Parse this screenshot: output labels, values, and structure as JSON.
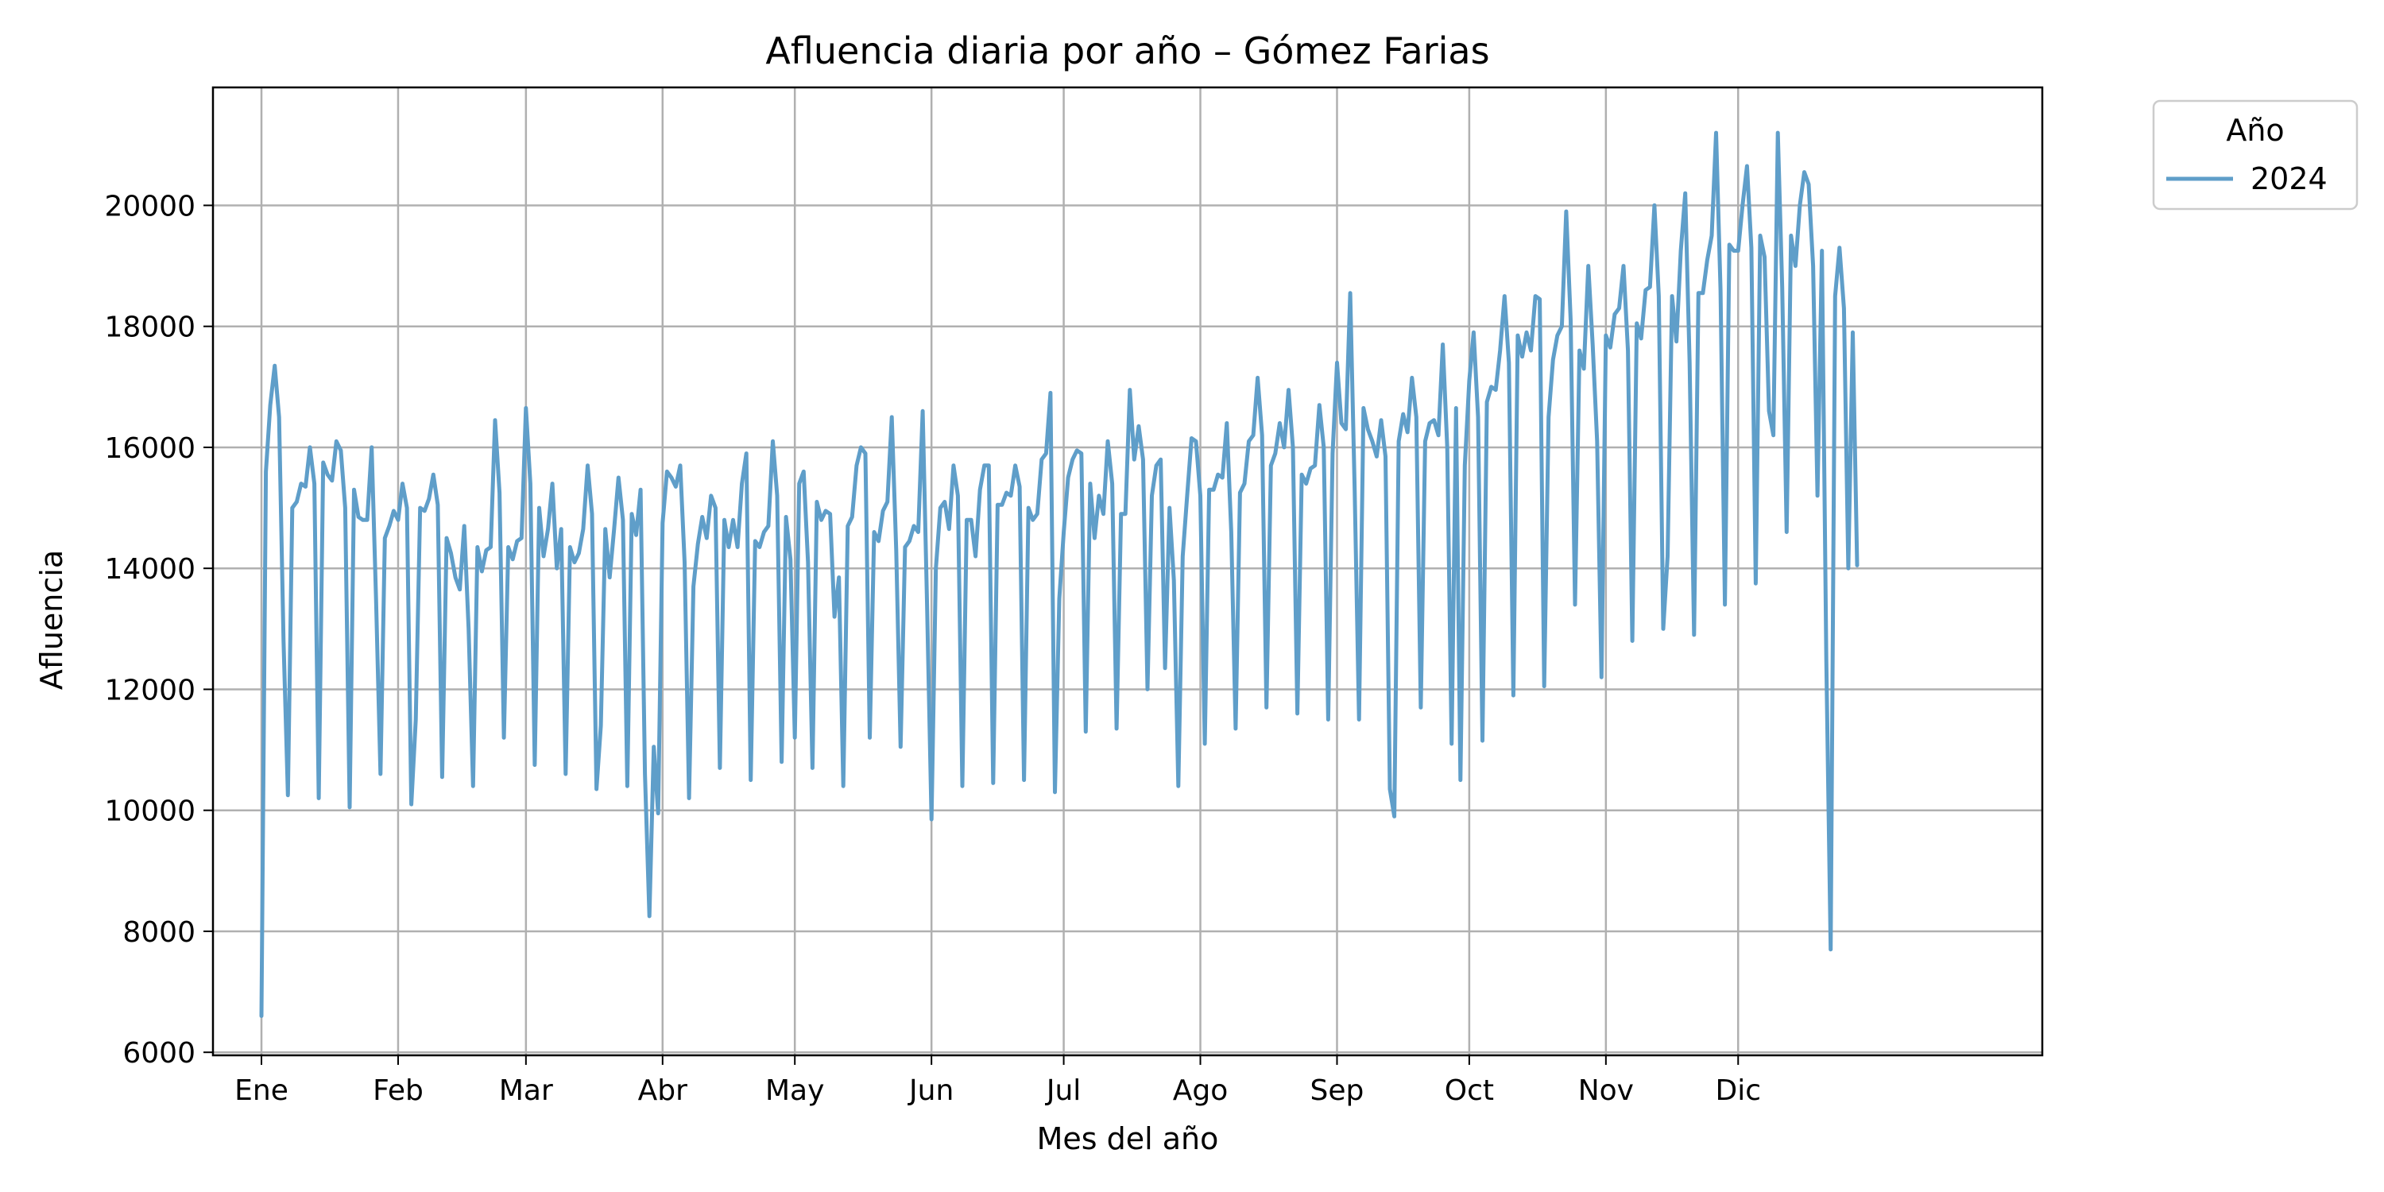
{
  "chart_data": {
    "type": "line",
    "title": "Afluencia diaria por año – Gómez Farias",
    "xlabel": "Mes del año",
    "ylabel": "Afluencia",
    "x_tick_labels": [
      "Ene",
      "Feb",
      "Mar",
      "Abr",
      "May",
      "Jun",
      "Jul",
      "Ago",
      "Sep",
      "Oct",
      "Nov",
      "Dic"
    ],
    "y_ticks": [
      6000,
      8000,
      10000,
      12000,
      14000,
      16000,
      18000,
      20000
    ],
    "xlim_day_of_year": [
      -11,
      404
    ],
    "ylim": [
      5950,
      21950
    ],
    "grid": true,
    "legend": {
      "title": "Año",
      "placement": "outside-top-right"
    },
    "color": "#5f9ec9",
    "series": [
      {
        "name": "2024",
        "values": [
          6600,
          15600,
          16700,
          17350,
          16500,
          12800,
          10250,
          15000,
          15100,
          15400,
          15350,
          16000,
          15400,
          10200,
          15750,
          15550,
          15450,
          16100,
          15950,
          15000,
          10050,
          15300,
          14850,
          14800,
          14800,
          16000,
          13500,
          10600,
          14500,
          14700,
          14950,
          14800,
          15400,
          15000,
          10100,
          11500,
          15000,
          14950,
          15150,
          15550,
          15050,
          10550,
          14500,
          14250,
          13850,
          13650,
          14700,
          13000,
          10400,
          14350,
          13950,
          14300,
          14350,
          16450,
          15250,
          11200,
          14350,
          14150,
          14450,
          14500,
          16650,
          15400,
          10750,
          15000,
          14200,
          14650,
          15400,
          14000,
          14650,
          10600,
          14350,
          14100,
          14250,
          14650,
          15700,
          14900,
          10350,
          11400,
          14650,
          13850,
          14650,
          15500,
          14800,
          10400,
          14900,
          14550,
          15300,
          10600,
          8250,
          11050,
          9950,
          14750,
          15600,
          15500,
          15350,
          15700,
          14100,
          10200,
          13700,
          14400,
          14850,
          14500,
          15200,
          15000,
          10700,
          14800,
          14350,
          14800,
          14350,
          15400,
          15900,
          10500,
          14450,
          14350,
          14600,
          14700,
          16100,
          15200,
          10800,
          14850,
          14150,
          11200,
          15400,
          15600,
          14100,
          10700,
          15100,
          14800,
          14950,
          14900,
          13200,
          13850,
          10400,
          14700,
          14850,
          15700,
          16000,
          15900,
          11200,
          14600,
          14450,
          14950,
          15100,
          16500,
          14300,
          11050,
          14350,
          14450,
          14700,
          14600,
          16600,
          13400,
          9850,
          14000,
          15000,
          15100,
          14650,
          15700,
          15200,
          10400,
          14800,
          14800,
          14200,
          15300,
          15700,
          15700,
          10450,
          15050,
          15050,
          15250,
          15200,
          15700,
          15350,
          10500,
          15000,
          14800,
          14900,
          15800,
          15900,
          16900,
          10300,
          13500,
          14600,
          15500,
          15800,
          15950,
          15900,
          11300,
          15400,
          14500,
          15200,
          14900,
          16100,
          15400,
          11350,
          14900,
          14900,
          16950,
          15800,
          16350,
          15800,
          12000,
          15200,
          15700,
          15800,
          12350,
          15000,
          13800,
          10400,
          14200,
          15200,
          16150,
          16100,
          15200,
          11100,
          15300,
          15300,
          15550,
          15500,
          16400,
          14600,
          11350,
          15250,
          15400,
          16100,
          16200,
          17150,
          16200,
          11700,
          15700,
          15900,
          16400,
          16000,
          16950,
          16000,
          11600,
          15550,
          15400,
          15650,
          15700,
          16700,
          16000,
          11500,
          15900,
          17400,
          16400,
          16300,
          18550,
          15300,
          11500,
          16650,
          16300,
          16100,
          15850,
          16450,
          15850,
          10350,
          9900,
          16100,
          16550,
          16250,
          17150,
          16500,
          11700,
          16100,
          16400,
          16450,
          16200,
          17700,
          16000,
          11100,
          16650,
          10500,
          15700,
          17100,
          17900,
          16500,
          11150,
          16750,
          17000,
          16950,
          17600,
          18500,
          17400,
          11900,
          17850,
          17500,
          17900,
          17600,
          18500,
          18450,
          12050,
          16500,
          17450,
          17850,
          18000,
          19900,
          18100,
          13400,
          17600,
          17300,
          19000,
          17700,
          16100,
          12200,
          17850,
          17650,
          18200,
          18300,
          19000,
          17600,
          12800,
          18050,
          17800,
          18600,
          18650,
          20000,
          18500,
          13000,
          14200,
          18500,
          17750,
          19250,
          20200,
          17400,
          12900,
          18550,
          18550,
          19100,
          19500,
          21200,
          18600,
          13400,
          19350,
          19250,
          19250,
          20000,
          20650,
          19300,
          13750,
          19500,
          19150,
          16600,
          16200,
          21200,
          18650,
          14600,
          19500,
          19000,
          20000,
          20550,
          20350,
          19000,
          15200,
          19250,
          12500,
          7700,
          18500,
          19300,
          18300,
          14000,
          17900,
          14050
        ]
      }
    ]
  }
}
